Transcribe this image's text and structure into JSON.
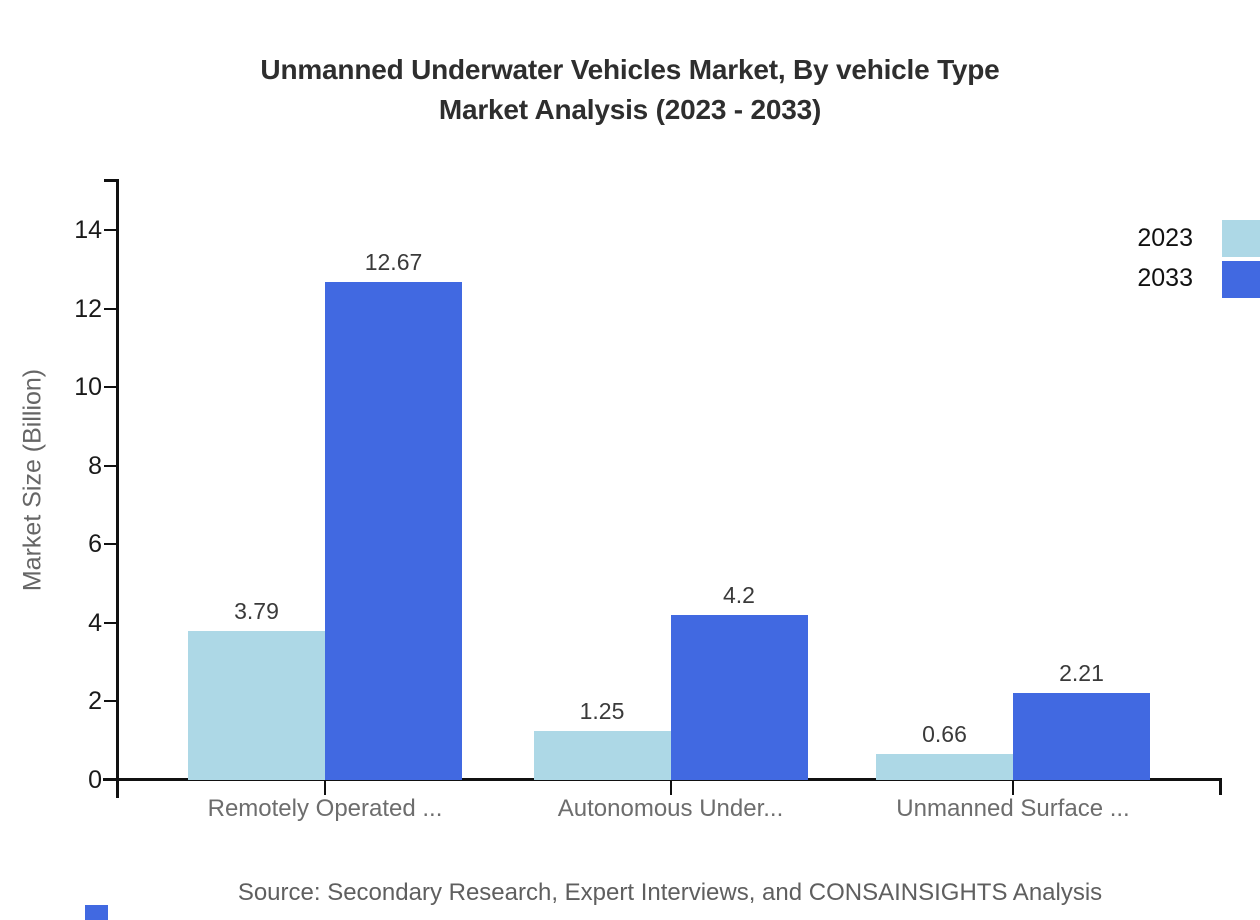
{
  "title": {
    "line1": "Unmanned Underwater Vehicles Market, By vehicle Type",
    "line2": "Market Analysis (2023 - 2033)"
  },
  "legend": {
    "items": [
      {
        "label": "2023",
        "color": "#ADD8E6"
      },
      {
        "label": "2033",
        "color": "#4169E1"
      }
    ]
  },
  "chart_data": {
    "type": "bar",
    "title": "Unmanned Underwater Vehicles Market, By vehicle Type Market Analysis (2023 - 2033)",
    "categories": [
      "Remotely Operated ...",
      "Autonomous Under...",
      "Unmanned Surface ..."
    ],
    "series": [
      {
        "name": "2023",
        "color": "#ADD8E6",
        "values": [
          3.79,
          1.25,
          0.66
        ],
        "value_labels": [
          "3.79",
          "1.25",
          "0.66"
        ]
      },
      {
        "name": "2033",
        "color": "#4169E1",
        "values": [
          12.67,
          4.2,
          2.21
        ],
        "value_labels": [
          "12.67",
          "4.2",
          "2.21"
        ]
      }
    ],
    "xlabel": "",
    "ylabel": "Market Size (Billion)",
    "yticks": [
      0,
      2,
      4,
      6,
      8,
      10,
      12,
      14
    ],
    "ylim": [
      0,
      15.3
    ],
    "grid": false,
    "legend_position": "top-right"
  },
  "source": {
    "text": "Source: Secondary Research, Expert Interviews, and CONSAINSIGHTS Analysis"
  },
  "colors": {
    "axis": "#111111",
    "title_text": "#2e2e2e",
    "muted_text": "#6d6d6d",
    "bar_2023": "#ADD8E6",
    "bar_2033": "#4169E1",
    "watermark": "#4169E1"
  }
}
